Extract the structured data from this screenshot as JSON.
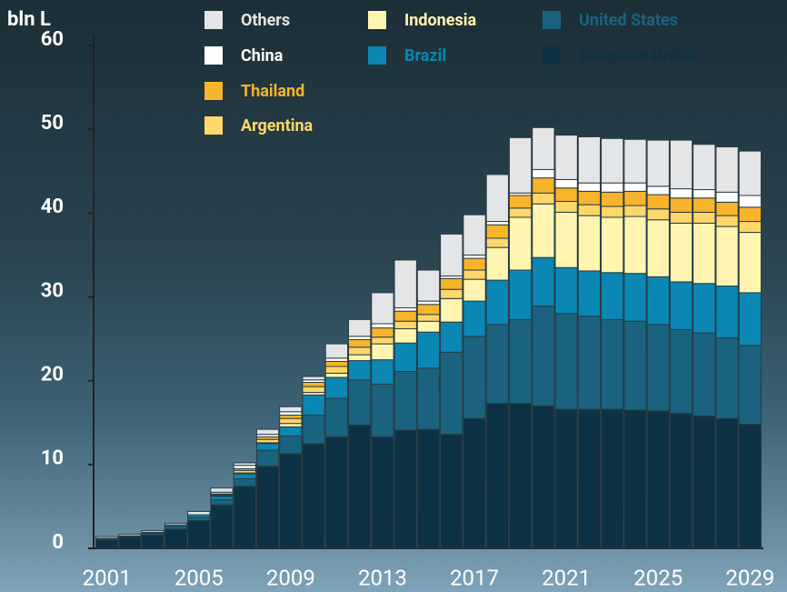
{
  "chart_data": {
    "type": "stacked-bar",
    "y_label": "bln L",
    "categories": [
      "2001",
      null,
      null,
      null,
      "2005",
      null,
      null,
      null,
      "2009",
      null,
      null,
      null,
      "2013",
      null,
      null,
      null,
      "2017",
      null,
      null,
      null,
      "2021",
      null,
      null,
      null,
      "2025",
      null,
      null,
      null,
      "2029"
    ],
    "series": [
      {
        "name": "European Union",
        "color": "#0e3245",
        "values": [
          1.0,
          1.3,
          1.6,
          2.3,
          3.3,
          5.2,
          7.4,
          9.8,
          11.3,
          12.5,
          13.3,
          14.7,
          13.3,
          14.1,
          14.2,
          13.6,
          15.5,
          17.3,
          17.3,
          17.0,
          16.6,
          16.6,
          16.6,
          16.5,
          16.4,
          16.1,
          15.8,
          15.5,
          14.8
        ]
      },
      {
        "name": "United States",
        "color": "#19637f",
        "values": [
          0.1,
          0.1,
          0.2,
          0.3,
          0.4,
          0.6,
          0.9,
          1.9,
          2.1,
          3.4,
          4.6,
          5.4,
          6.3,
          7.0,
          7.3,
          9.8,
          9.8,
          9.4,
          10.0,
          11.9,
          11.4,
          11.1,
          10.7,
          10.6,
          10.3,
          10.0,
          9.9,
          9.6,
          9.4
        ]
      },
      {
        "name": "Brazil",
        "color": "#0a87b3",
        "values": [
          0.1,
          0.1,
          0.1,
          0.2,
          0.3,
          0.4,
          0.6,
          0.8,
          1.1,
          2.4,
          2.5,
          2.3,
          2.9,
          3.4,
          4.3,
          3.6,
          4.2,
          5.3,
          5.9,
          5.8,
          5.5,
          5.4,
          5.6,
          5.7,
          5.7,
          5.7,
          5.9,
          6.2,
          6.3
        ]
      },
      {
        "name": "Indonesia",
        "color": "#fff5b0",
        "values": [
          0,
          0,
          0,
          0,
          0,
          0.1,
          0.1,
          0.1,
          0.4,
          0.3,
          0.5,
          0.7,
          1.9,
          1.7,
          1.3,
          2.8,
          2.6,
          3.9,
          6.3,
          6.4,
          6.6,
          6.6,
          6.6,
          6.8,
          6.8,
          7.0,
          7.2,
          7.1,
          7.2
        ]
      },
      {
        "name": "Argentina",
        "color": "#fdd76a",
        "values": [
          0,
          0,
          0,
          0,
          0,
          0.1,
          0.3,
          0.4,
          0.6,
          0.7,
          0.8,
          0.9,
          0.8,
          0.9,
          0.8,
          1.1,
          1.1,
          1.1,
          1.1,
          1.3,
          1.3,
          1.3,
          1.3,
          1.3,
          1.3,
          1.3,
          1.3,
          1.3,
          1.3
        ]
      },
      {
        "name": "Thailand",
        "color": "#f8b42a",
        "values": [
          0,
          0,
          0,
          0,
          0,
          0.1,
          0.2,
          0.3,
          0.4,
          0.5,
          0.6,
          0.9,
          1.1,
          1.2,
          1.2,
          1.3,
          1.4,
          1.6,
          1.5,
          1.8,
          1.6,
          1.6,
          1.7,
          1.7,
          1.7,
          1.7,
          1.7,
          1.6,
          1.7
        ]
      },
      {
        "name": "China",
        "color": "#ffffff",
        "values": [
          0,
          0,
          0,
          0,
          0,
          0.2,
          0.4,
          0.3,
          0.4,
          0.3,
          0.4,
          0.4,
          0.5,
          0.4,
          0.4,
          0.3,
          0.4,
          0.4,
          0.3,
          1.0,
          1.0,
          1.0,
          1.1,
          1.0,
          1.0,
          1.1,
          1.0,
          1.2,
          1.4
        ]
      },
      {
        "name": "Others",
        "color": "#e4e5e7",
        "values": [
          0.2,
          0.2,
          0.2,
          0.2,
          0.4,
          0.5,
          0.3,
          0.6,
          0.6,
          0.4,
          1.7,
          2.0,
          3.7,
          5.7,
          3.7,
          5.0,
          4.8,
          5.6,
          6.6,
          5.0,
          5.3,
          5.5,
          5.3,
          5.2,
          5.5,
          5.8,
          5.4,
          5.4,
          5.3
        ]
      }
    ],
    "ylim": [
      0,
      60
    ],
    "yticks": [
      0,
      10,
      20,
      30,
      40,
      50,
      60
    ]
  }
}
